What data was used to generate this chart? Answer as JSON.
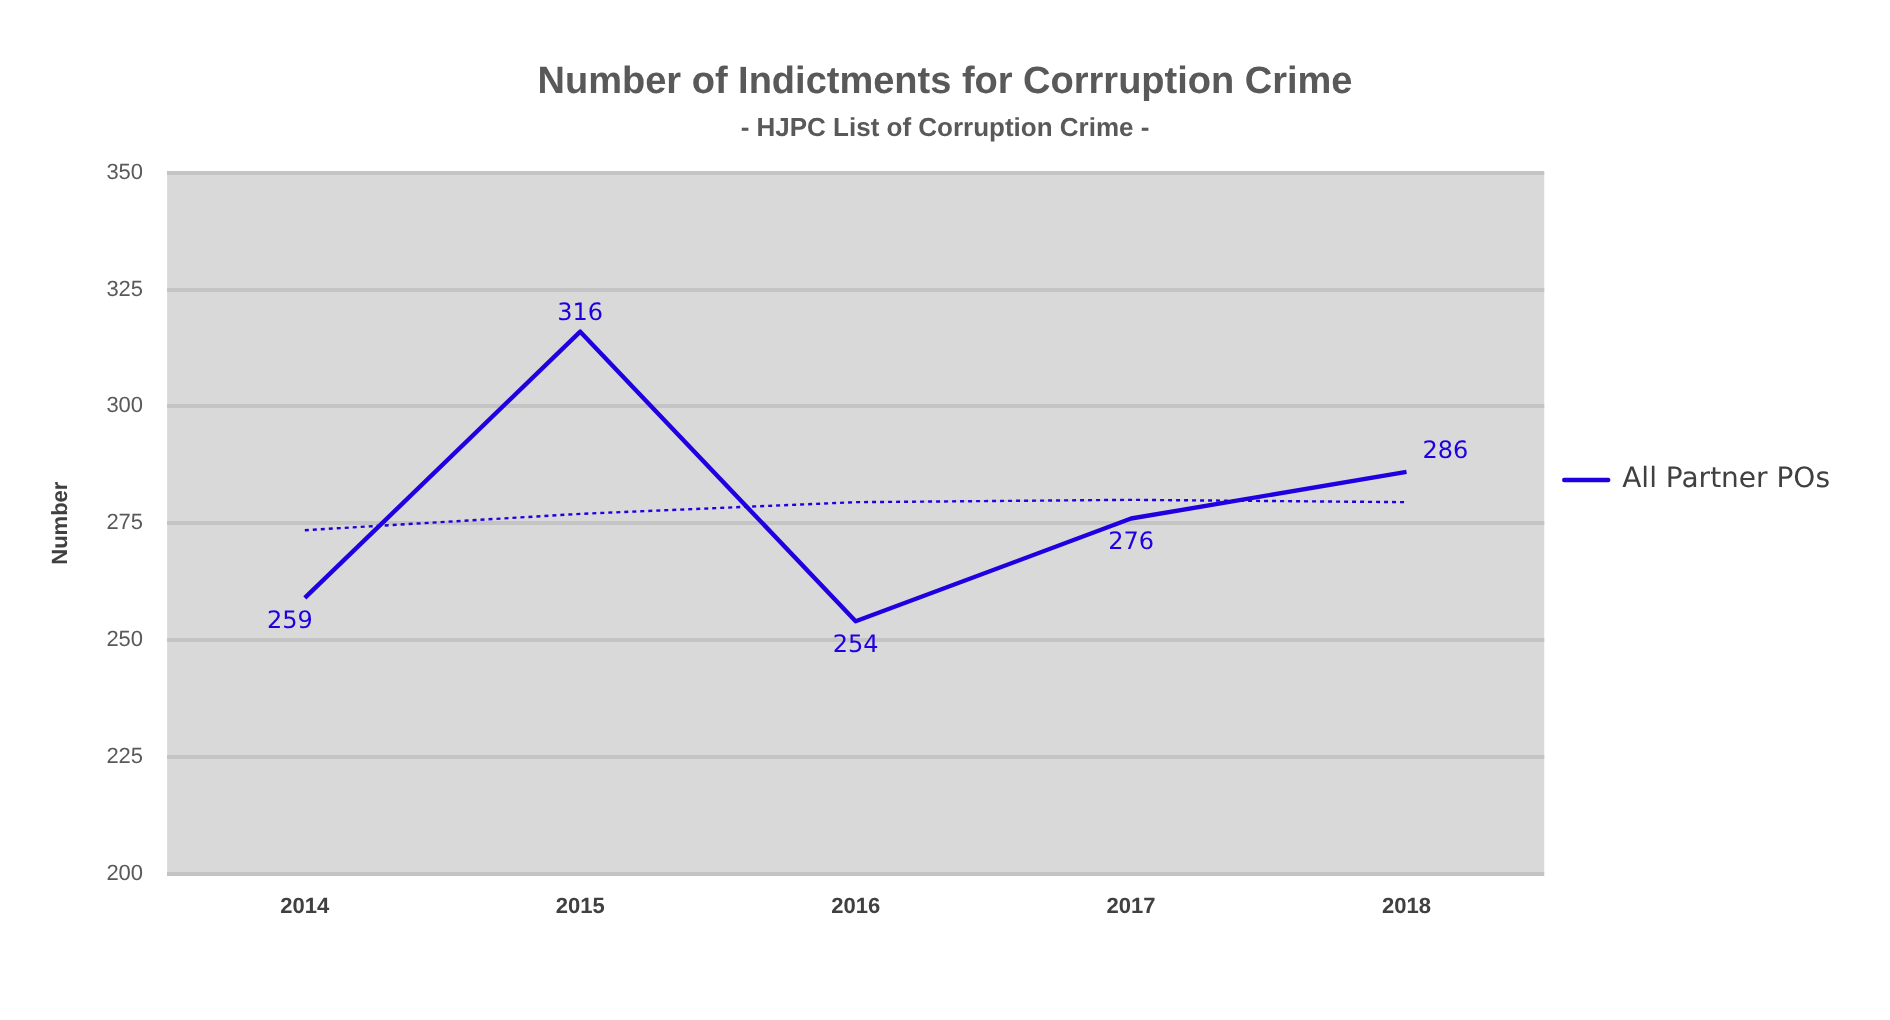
{
  "chart_data": {
    "type": "line",
    "title": "Number of Indictments for Corrruption Crime",
    "subtitle": "- HJPC List of Corruption Crime -",
    "ylabel": "Number",
    "categories": [
      "2014",
      "2015",
      "2016",
      "2017",
      "2018"
    ],
    "series": [
      {
        "name": "All Partner POs",
        "color": "#1f00e0",
        "values": [
          259,
          316,
          254,
          276,
          286
        ],
        "value_labels": [
          "259",
          "316",
          "254",
          "276",
          "286"
        ]
      },
      {
        "type": "line",
        "color": "#1f00e0",
        "line_style": "dotted",
        "values": [
          273.5,
          277,
          279.5,
          280,
          279.5
        ]
      }
    ],
    "ylim": [
      200,
      350
    ],
    "yticks": [
      200,
      225,
      250,
      275,
      300,
      325,
      350
    ],
    "grid": "y",
    "legend": "right",
    "marker": "none"
  }
}
